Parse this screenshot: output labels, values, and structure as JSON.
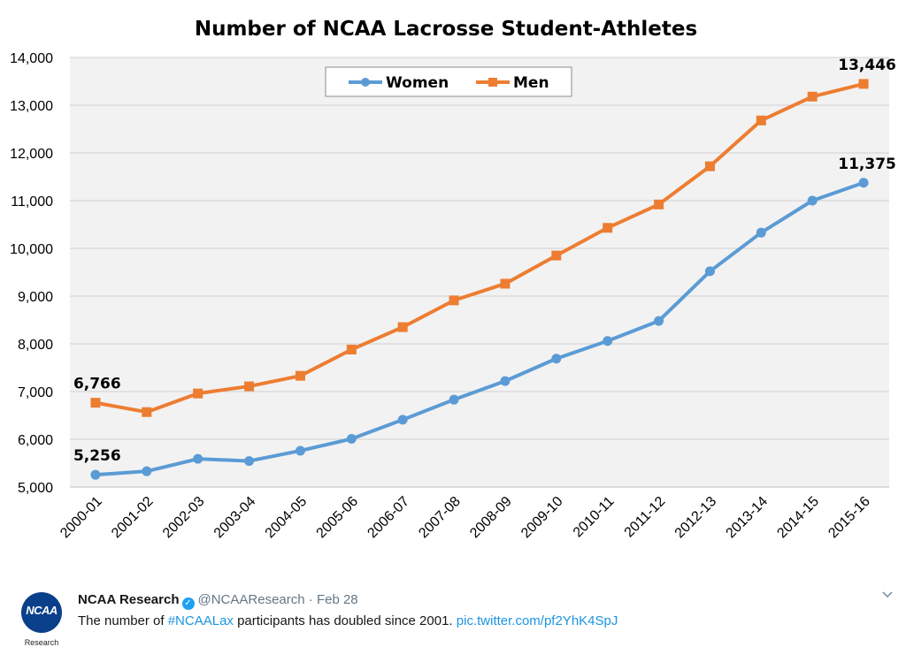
{
  "chart_data": {
    "type": "line",
    "title": "Number of NCAA Lacrosse Student-Athletes",
    "categories": [
      "2000-01",
      "2001-02",
      "2002-03",
      "2003-04",
      "2004-05",
      "2005-06",
      "2006-07",
      "2007-08",
      "2008-09",
      "2009-10",
      "2010-11",
      "2011-12",
      "2012-13",
      "2013-14",
      "2014-15",
      "2015-16"
    ],
    "series": [
      {
        "name": "Women",
        "color": "#5b9bd5",
        "marker": "circle",
        "values": [
          5256,
          5330,
          5590,
          5545,
          5760,
          6010,
          6410,
          6830,
          7220,
          7690,
          8060,
          8480,
          9520,
          10330,
          11000,
          11375
        ]
      },
      {
        "name": "Men",
        "color": "#ed7d31",
        "marker": "square",
        "values": [
          6766,
          6570,
          6960,
          7110,
          7330,
          7880,
          8350,
          8910,
          9260,
          9850,
          10430,
          10920,
          11720,
          12680,
          13180,
          13446
        ]
      }
    ],
    "data_labels": [
      {
        "series": "Men",
        "index": 0,
        "text": "6,766"
      },
      {
        "series": "Women",
        "index": 0,
        "text": "5,256"
      },
      {
        "series": "Men",
        "index": 15,
        "text": "13,446"
      },
      {
        "series": "Women",
        "index": 15,
        "text": "11,375"
      }
    ],
    "ylim": [
      5000,
      14000
    ],
    "yticks": [
      5000,
      6000,
      7000,
      8000,
      9000,
      10000,
      11000,
      12000,
      13000,
      14000
    ],
    "ytick_labels": [
      "5,000",
      "6,000",
      "7,000",
      "8,000",
      "9,000",
      "10,000",
      "11,000",
      "12,000",
      "13,000",
      "14,000"
    ],
    "grid": true,
    "legend_position": "top-center",
    "plot_background": "#f2f2f2"
  },
  "tweet": {
    "avatar_text": "NCAA",
    "avatar_sub": "Research",
    "name": "NCAA Research",
    "handle": "@NCAAResearch",
    "date": "Feb 28",
    "separator": "·",
    "text_before": "The number of ",
    "hashtag": "#NCAALax",
    "text_after": " participants has doubled since 2001. ",
    "link": "pic.twitter.com/pf2YhK4SpJ",
    "verified_icon": "check-badge-icon",
    "menu_icon": "chevron-down-icon"
  }
}
